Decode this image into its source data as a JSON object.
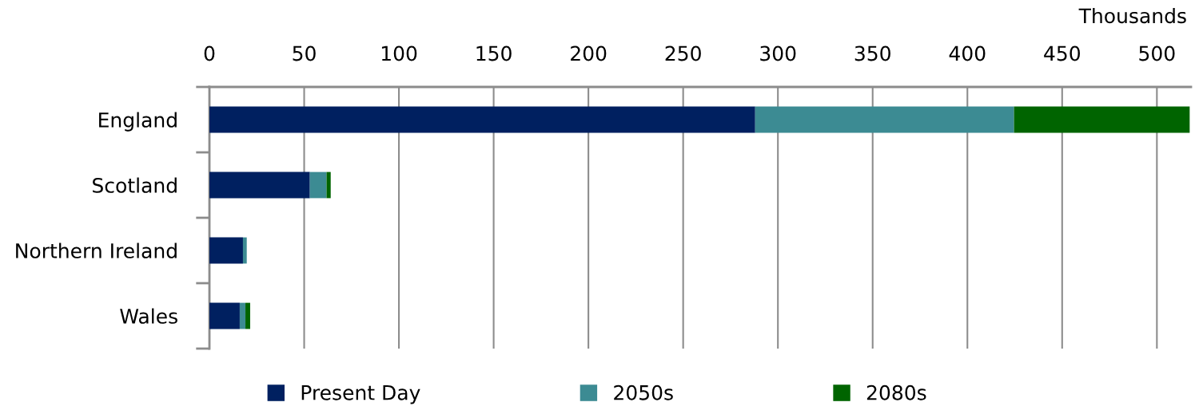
{
  "chart_data": {
    "type": "bar",
    "orientation": "horizontal",
    "stacked": true,
    "xlabel": "Thousands",
    "categories": [
      "England",
      "Scotland",
      "Northern Ireland",
      "Wales"
    ],
    "series": [
      {
        "name": "Present Day",
        "color": "#002060",
        "values": [
          288,
          53,
          17.7,
          16
        ]
      },
      {
        "name": "2050s",
        "color": "#3c8b93",
        "values": [
          136.6,
          8.8,
          2.0,
          3
        ]
      },
      {
        "name": "2080s",
        "color": "#006400",
        "values": [
          92.7,
          2.2,
          0,
          2.5
        ]
      }
    ],
    "xlim": [
      0,
      518
    ],
    "xticks": [
      0,
      50,
      100,
      150,
      200,
      250,
      300,
      350,
      400,
      450,
      500
    ],
    "grid": "x",
    "legend": "bottom"
  }
}
